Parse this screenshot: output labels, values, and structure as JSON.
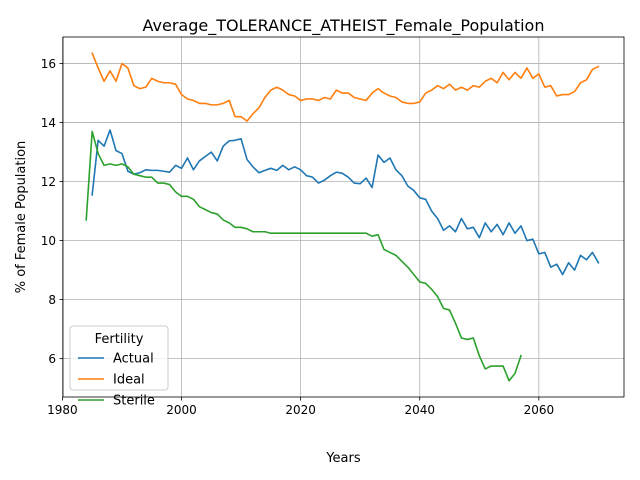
{
  "chart_data": {
    "type": "line",
    "title": "Average_TOLERANCE_ATHEIST_Female_Population",
    "xlabel": "Years",
    "ylabel": "% of Female Population",
    "xlim": [
      1980.1,
      2074.3
    ],
    "ylim": [
      4.7,
      16.9
    ],
    "xticks": [
      1980,
      2000,
      2020,
      2040,
      2060
    ],
    "yticks": [
      6,
      8,
      10,
      12,
      14,
      16
    ],
    "grid": true,
    "legend": {
      "title": "Fertility",
      "position": "lower-left"
    },
    "series": [
      {
        "name": "Actual",
        "color": "#1f77b4",
        "x": [
          1985,
          1986,
          1987,
          1988,
          1989,
          1990,
          1991,
          1992,
          1993,
          1994,
          1995,
          1996,
          1997,
          1998,
          1999,
          2000,
          2001,
          2002,
          2003,
          2004,
          2005,
          2006,
          2007,
          2008,
          2009,
          2010,
          2011,
          2012,
          2013,
          2014,
          2015,
          2016,
          2017,
          2018,
          2019,
          2020,
          2021,
          2022,
          2023,
          2024,
          2025,
          2026,
          2027,
          2028,
          2029,
          2030,
          2031,
          2032,
          2033,
          2034,
          2035,
          2036,
          2037,
          2038,
          2039,
          2040,
          2041,
          2042,
          2043,
          2044,
          2045,
          2046,
          2047,
          2048,
          2049,
          2050,
          2051,
          2052,
          2053,
          2054,
          2055,
          2056,
          2057,
          2058,
          2059,
          2060,
          2061,
          2062,
          2063,
          2064,
          2065,
          2066,
          2067,
          2068,
          2069,
          2070
        ],
        "y": [
          11.55,
          13.4,
          13.2,
          13.75,
          13.05,
          12.95,
          12.35,
          12.25,
          12.3,
          12.4,
          12.38,
          12.38,
          12.35,
          12.32,
          12.55,
          12.45,
          12.8,
          12.4,
          12.7,
          12.85,
          13.0,
          12.7,
          13.2,
          13.38,
          13.4,
          13.45,
          12.75,
          12.5,
          12.3,
          12.38,
          12.45,
          12.38,
          12.55,
          12.4,
          12.5,
          12.4,
          12.2,
          12.15,
          11.95,
          12.05,
          12.2,
          12.32,
          12.28,
          12.15,
          11.95,
          11.93,
          12.12,
          11.8,
          12.9,
          12.65,
          12.8,
          12.4,
          12.2,
          11.85,
          11.7,
          11.45,
          11.4,
          11.0,
          10.75,
          10.35,
          10.5,
          10.3,
          10.75,
          10.4,
          10.45,
          10.1,
          10.6,
          10.3,
          10.55,
          10.2,
          10.6,
          10.25,
          10.5,
          10.0,
          10.05,
          9.55,
          9.6,
          9.1,
          9.2,
          8.85,
          9.25,
          9.0,
          9.5,
          9.35,
          9.6,
          9.25
        ]
      },
      {
        "name": "Ideal",
        "color": "#ff7f0e",
        "x": [
          1985,
          1986,
          1987,
          1988,
          1989,
          1990,
          1991,
          1992,
          1993,
          1994,
          1995,
          1996,
          1997,
          1998,
          1999,
          2000,
          2001,
          2002,
          2003,
          2004,
          2005,
          2006,
          2007,
          2008,
          2009,
          2010,
          2011,
          2012,
          2013,
          2014,
          2015,
          2016,
          2017,
          2018,
          2019,
          2020,
          2021,
          2022,
          2023,
          2024,
          2025,
          2026,
          2027,
          2028,
          2029,
          2030,
          2031,
          2032,
          2033,
          2034,
          2035,
          2036,
          2037,
          2038,
          2039,
          2040,
          2041,
          2042,
          2043,
          2044,
          2045,
          2046,
          2047,
          2048,
          2049,
          2050,
          2051,
          2052,
          2053,
          2054,
          2055,
          2056,
          2057,
          2058,
          2059,
          2060,
          2061,
          2062,
          2063,
          2064,
          2065,
          2066,
          2067,
          2068,
          2069,
          2070
        ],
        "y": [
          16.35,
          15.85,
          15.4,
          15.75,
          15.4,
          16.0,
          15.85,
          15.25,
          15.15,
          15.2,
          15.5,
          15.4,
          15.35,
          15.35,
          15.3,
          14.95,
          14.8,
          14.75,
          14.65,
          14.65,
          14.6,
          14.6,
          14.65,
          14.75,
          14.2,
          14.2,
          14.05,
          14.3,
          14.5,
          14.85,
          15.1,
          15.2,
          15.1,
          14.95,
          14.9,
          14.75,
          14.8,
          14.8,
          14.75,
          14.85,
          14.8,
          15.1,
          15.0,
          15.0,
          14.85,
          14.8,
          14.75,
          15.0,
          15.15,
          15.0,
          14.9,
          14.85,
          14.7,
          14.65,
          14.65,
          14.7,
          15.0,
          15.1,
          15.25,
          15.15,
          15.3,
          15.1,
          15.2,
          15.1,
          15.25,
          15.2,
          15.4,
          15.5,
          15.35,
          15.7,
          15.45,
          15.7,
          15.5,
          15.85,
          15.5,
          15.65,
          15.2,
          15.25,
          14.9,
          14.95,
          14.95,
          15.05,
          15.35,
          15.45,
          15.8,
          15.9
        ]
      },
      {
        "name": "Sterile",
        "color": "#2ca02c",
        "x": [
          1984,
          1985,
          1986,
          1987,
          1988,
          1989,
          1990,
          1991,
          1992,
          1993,
          1994,
          1995,
          1996,
          1997,
          1998,
          1999,
          2000,
          2001,
          2002,
          2003,
          2004,
          2005,
          2006,
          2007,
          2008,
          2009,
          2010,
          2011,
          2012,
          2013,
          2014,
          2015,
          2016,
          2017,
          2018,
          2019,
          2020,
          2021,
          2022,
          2023,
          2024,
          2025,
          2026,
          2027,
          2028,
          2029,
          2030,
          2031,
          2032,
          2033,
          2034,
          2035,
          2036,
          2037,
          2038,
          2039,
          2040,
          2041,
          2042,
          2043,
          2044,
          2045,
          2046,
          2047,
          2048,
          2049,
          2050,
          2051,
          2052,
          2053,
          2054,
          2055,
          2056,
          2057
        ],
        "y": [
          10.7,
          13.7,
          12.95,
          12.55,
          12.6,
          12.55,
          12.6,
          12.5,
          12.25,
          12.2,
          12.15,
          12.15,
          11.95,
          11.95,
          11.9,
          11.65,
          11.5,
          11.5,
          11.4,
          11.15,
          11.05,
          10.95,
          10.9,
          10.7,
          10.6,
          10.45,
          10.45,
          10.4,
          10.3,
          10.3,
          10.3,
          10.25,
          10.25,
          10.25,
          10.25,
          10.25,
          10.25,
          10.25,
          10.25,
          10.25,
          10.25,
          10.25,
          10.25,
          10.25,
          10.25,
          10.25,
          10.25,
          10.25,
          10.15,
          10.2,
          9.7,
          9.6,
          9.5,
          9.3,
          9.1,
          8.85,
          8.6,
          8.55,
          8.35,
          8.1,
          7.7,
          7.65,
          7.2,
          6.7,
          6.65,
          6.7,
          6.1,
          5.65,
          5.75,
          5.75,
          5.75,
          5.25,
          5.5,
          6.1
        ]
      }
    ]
  }
}
